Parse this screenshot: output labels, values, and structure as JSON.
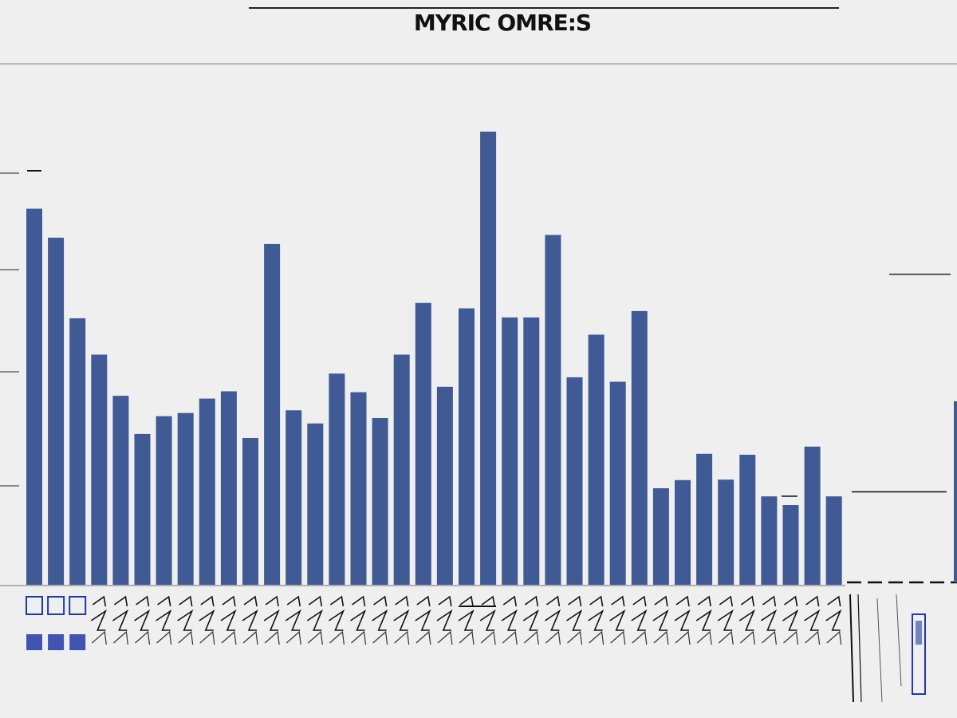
{
  "chart_data": {
    "type": "bar",
    "title": "MYRIC OMRE:S",
    "bar_color": "#3f5a94",
    "bar_accent_color": "#1f3aa8",
    "rule_color": "#222222",
    "axis_color": "#9a9a9a",
    "grid": false,
    "legend": "none",
    "ylim": [
      0,
      1
    ],
    "values": [
      0.83,
      0.766,
      0.588,
      0.508,
      0.417,
      0.333,
      0.372,
      0.379,
      0.411,
      0.427,
      0.324,
      0.752,
      0.385,
      0.356,
      0.466,
      0.425,
      0.368,
      0.508,
      0.622,
      0.437,
      0.61,
      1.0,
      0.59,
      0.59,
      0.772,
      0.458,
      0.552,
      0.448,
      0.604,
      0.213,
      0.231,
      0.289,
      0.232,
      0.287,
      0.195,
      0.176,
      0.305,
      0.195
    ],
    "stub_values": [
      0.205,
      0.685,
      0.405
    ]
  }
}
